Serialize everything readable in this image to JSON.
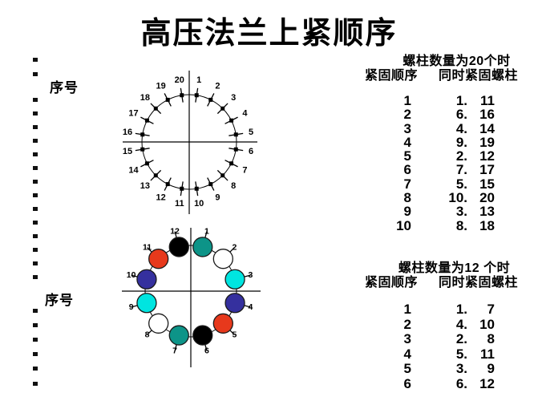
{
  "title": "高压法兰上紧顺序",
  "left_rail": {
    "bullet_glyph": "■",
    "bullet_count": 22,
    "section_label_top": "序号",
    "section_label_bottom": "序号"
  },
  "diagram_20": {
    "description": "flange circle with 20 stud tick marks numbered clockwise from top",
    "bolt_labels": [
      "1",
      "2",
      "3",
      "4",
      "5",
      "6",
      "7",
      "8",
      "9",
      "10",
      "11",
      "12",
      "13",
      "14",
      "15",
      "16",
      "17",
      "18",
      "19",
      "20"
    ]
  },
  "diagram_12": {
    "description": "flange circle with 12 colored studs numbered clockwise from top",
    "palette": {
      "teal": "#0D9488",
      "white": "#FFFFFF",
      "cyan": "#00E5E0",
      "navy": "#35309E",
      "red": "#E7391C",
      "black": "#000000"
    },
    "bolts": [
      {
        "label": "1",
        "color": "teal"
      },
      {
        "label": "2",
        "color": "white"
      },
      {
        "label": "3",
        "color": "cyan"
      },
      {
        "label": "4",
        "color": "navy"
      },
      {
        "label": "5",
        "color": "red"
      },
      {
        "label": "6",
        "color": "black"
      },
      {
        "label": "7",
        "color": "teal"
      },
      {
        "label": "8",
        "color": "white"
      },
      {
        "label": "9",
        "color": "cyan"
      },
      {
        "label": "10",
        "color": "navy"
      },
      {
        "label": "11",
        "color": "red"
      },
      {
        "label": "12",
        "color": "black"
      }
    ]
  },
  "table_20": {
    "title": "螺柱数量为20个时",
    "col_header_order": "紧固顺序",
    "col_header_bolts": "同时紧固螺柱",
    "rows": [
      {
        "order": "1",
        "first": "1.",
        "second": "11"
      },
      {
        "order": "2",
        "first": "6.",
        "second": "16"
      },
      {
        "order": "3",
        "first": "4.",
        "second": "14"
      },
      {
        "order": "4",
        "first": "9.",
        "second": "19"
      },
      {
        "order": "5",
        "first": "2.",
        "second": "12"
      },
      {
        "order": "6",
        "first": "7.",
        "second": "17"
      },
      {
        "order": "7",
        "first": "5.",
        "second": "15"
      },
      {
        "order": "8",
        "first": "10.",
        "second": "20"
      },
      {
        "order": "9",
        "first": "3.",
        "second": "13"
      },
      {
        "order": "10",
        "first": "8.",
        "second": "18"
      }
    ]
  },
  "table_12": {
    "title": "螺柱数量为12 个时",
    "col_header_order": "紧固顺序",
    "col_header_bolts": "同时紧固螺柱",
    "rows": [
      {
        "order": "1",
        "first": "1.",
        "second": "7"
      },
      {
        "order": "2",
        "first": "4.",
        "second": "10"
      },
      {
        "order": "3",
        "first": "2.",
        "second": "8"
      },
      {
        "order": "4",
        "first": "5.",
        "second": "11"
      },
      {
        "order": "5",
        "first": "3.",
        "second": "9"
      },
      {
        "order": "6",
        "first": "6.",
        "second": "12"
      }
    ]
  }
}
